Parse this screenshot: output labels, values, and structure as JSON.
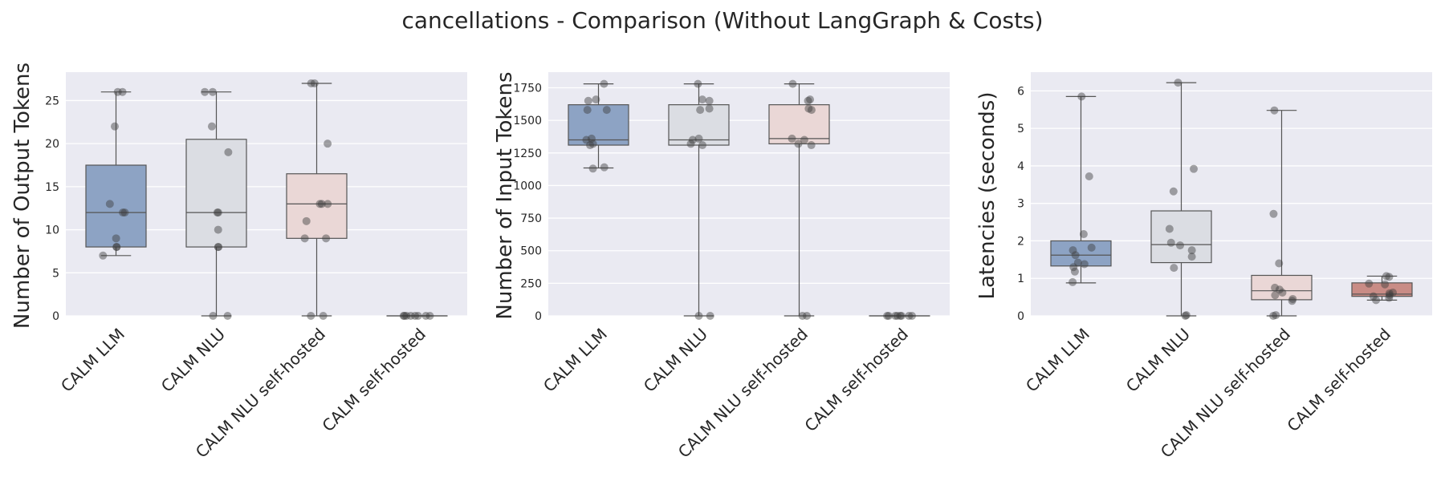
{
  "figure": {
    "title": "cancellations - Comparison (Without LangGraph & Costs)"
  },
  "chart_data": [
    {
      "type": "box",
      "ylabel": "Number of Output Tokens",
      "ylim": [
        0,
        28.3
      ],
      "yticks": [
        0,
        5,
        10,
        15,
        20,
        25
      ],
      "grid": true,
      "categories": [
        "CALM LLM",
        "CALM NLU",
        "CALM NLU self-hosted",
        "CALM self-hosted"
      ],
      "boxes": [
        {
          "q1": 8,
          "median": 12,
          "q3": 17.5,
          "whisker_low": 7,
          "whisker_high": 26,
          "color": "#8da3c4",
          "points": [
            26,
            26,
            22,
            13,
            12,
            12,
            9,
            8,
            8,
            7
          ]
        },
        {
          "q1": 8,
          "median": 12,
          "q3": 20.5,
          "whisker_low": 0,
          "whisker_high": 26,
          "color": "#dbdde3",
          "points": [
            26,
            26,
            22,
            19,
            12,
            12,
            10,
            8,
            8,
            0,
            0
          ]
        },
        {
          "q1": 9,
          "median": 13,
          "q3": 16.5,
          "whisker_low": 0,
          "whisker_high": 27,
          "color": "#ead7d6",
          "points": [
            27,
            27,
            20,
            13,
            13,
            13,
            11,
            9,
            9,
            0,
            0
          ]
        },
        {
          "q1": 0,
          "median": 0,
          "q3": 0,
          "whisker_low": 0,
          "whisker_high": 0,
          "color": "#c98c86",
          "points": [
            0,
            0,
            0,
            0,
            0,
            0,
            0,
            0
          ]
        }
      ]
    },
    {
      "type": "box",
      "ylabel": "Number of Input Tokens",
      "ylim": [
        0,
        1870
      ],
      "yticks": [
        0,
        250,
        500,
        750,
        1000,
        1250,
        1500,
        1750
      ],
      "grid": true,
      "categories": [
        "CALM LLM",
        "CALM NLU",
        "CALM NLU self-hosted",
        "CALM self-hosted"
      ],
      "boxes": [
        {
          "q1": 1310,
          "median": 1350,
          "q3": 1620,
          "whisker_low": 1135,
          "whisker_high": 1780,
          "color": "#8da3c4",
          "points": [
            1780,
            1660,
            1650,
            1580,
            1580,
            1360,
            1350,
            1320,
            1310,
            1140,
            1130
          ]
        },
        {
          "q1": 1310,
          "median": 1350,
          "q3": 1620,
          "whisker_low": 0,
          "whisker_high": 1780,
          "color": "#dbdde3",
          "points": [
            1780,
            1660,
            1650,
            1590,
            1580,
            1360,
            1350,
            1320,
            1310,
            0,
            0
          ]
        },
        {
          "q1": 1320,
          "median": 1360,
          "q3": 1620,
          "whisker_low": 0,
          "whisker_high": 1780,
          "color": "#ead7d6",
          "points": [
            1780,
            1660,
            1650,
            1590,
            1580,
            1360,
            1350,
            1320,
            1310,
            0,
            0
          ]
        },
        {
          "q1": 0,
          "median": 0,
          "q3": 0,
          "whisker_low": 0,
          "whisker_high": 0,
          "color": "#c98c86",
          "points": [
            0,
            0,
            0,
            0,
            0,
            0,
            0,
            0
          ]
        }
      ]
    },
    {
      "type": "box",
      "ylabel": "Latencies (seconds)",
      "ylim": [
        0,
        6.5
      ],
      "yticks": [
        0,
        1,
        2,
        3,
        4,
        5,
        6
      ],
      "grid": true,
      "categories": [
        "CALM LLM",
        "CALM NLU",
        "CALM NLU self-hosted",
        "CALM self-hosted"
      ],
      "boxes": [
        {
          "q1": 1.33,
          "median": 1.62,
          "q3": 2.0,
          "whisker_low": 0.88,
          "whisker_high": 5.85,
          "color": "#8da3c4",
          "points": [
            5.85,
            3.72,
            2.18,
            1.82,
            1.75,
            1.62,
            1.42,
            1.38,
            1.3,
            1.18,
            0.9
          ]
        },
        {
          "q1": 1.42,
          "median": 1.9,
          "q3": 2.8,
          "whisker_low": 0,
          "whisker_high": 6.22,
          "color": "#dbdde3",
          "points": [
            6.22,
            3.92,
            3.32,
            2.32,
            1.95,
            1.88,
            1.75,
            1.58,
            1.28,
            0.02,
            0
          ]
        },
        {
          "q1": 0.43,
          "median": 0.67,
          "q3": 1.08,
          "whisker_low": 0,
          "whisker_high": 5.48,
          "color": "#ead7d6",
          "points": [
            5.48,
            2.72,
            1.4,
            0.75,
            0.7,
            0.62,
            0.55,
            0.45,
            0.4,
            0.02,
            0
          ]
        },
        {
          "q1": 0.52,
          "median": 0.58,
          "q3": 0.88,
          "whisker_low": 0.42,
          "whisker_high": 1.06,
          "color": "#c98c86",
          "points": [
            1.06,
            1.04,
            0.86,
            0.84,
            0.62,
            0.6,
            0.55,
            0.52,
            0.48,
            0.42
          ]
        }
      ]
    }
  ]
}
